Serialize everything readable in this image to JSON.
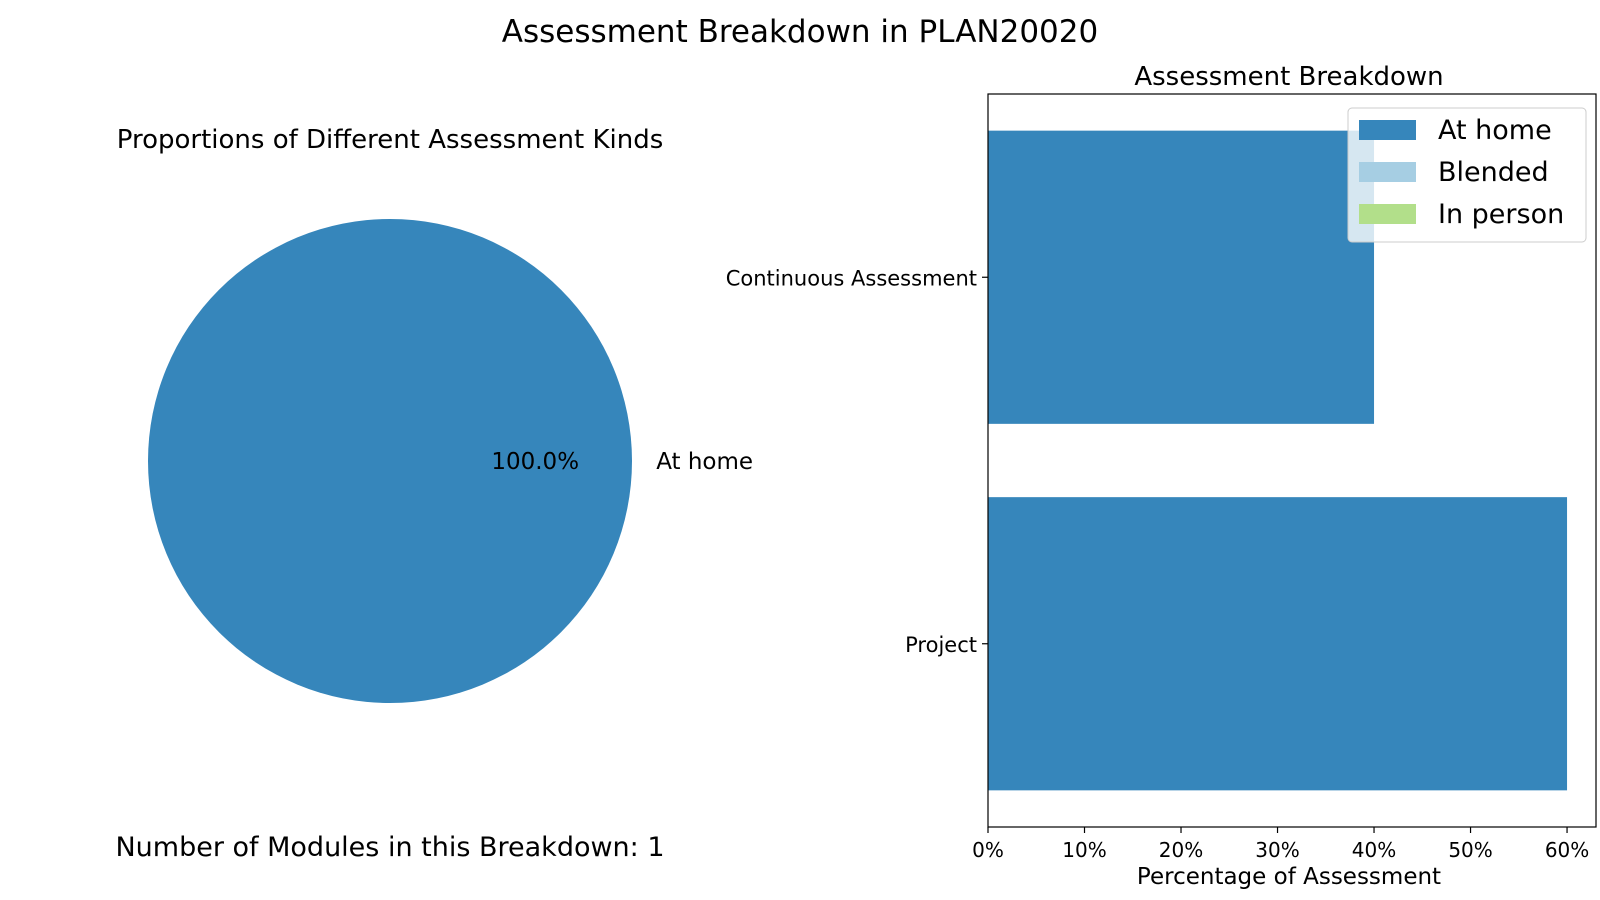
{
  "figure": {
    "suptitle": "Assessment Breakdown in PLAN20020"
  },
  "colors": {
    "at_home": "#3686bb",
    "blended": "#a6cee3",
    "in_person": "#b2df8a"
  },
  "chart_data": [
    {
      "type": "pie",
      "title": "Proportions of Different Assessment Kinds",
      "slices": [
        {
          "label": "At home",
          "value": 100.0,
          "pct_label": "100.0%",
          "color": "#3686bb"
        }
      ],
      "footer": "Number of Modules in this Breakdown: 1"
    },
    {
      "type": "bar",
      "orientation": "horizontal",
      "stacked": true,
      "title": "Assessment Breakdown",
      "xlabel": "Percentage of Assessment",
      "ylabel": "",
      "categories": [
        "Continuous Assessment",
        "Project"
      ],
      "series": [
        {
          "name": "At home",
          "color": "#3686bb",
          "values": [
            40,
            60
          ]
        },
        {
          "name": "Blended",
          "color": "#a6cee3",
          "values": [
            0,
            0
          ]
        },
        {
          "name": "In person",
          "color": "#b2df8a",
          "values": [
            0,
            0
          ]
        }
      ],
      "xlim": [
        0,
        63
      ],
      "xticks": [
        0,
        10,
        20,
        30,
        40,
        50,
        60
      ],
      "xtick_labels": [
        "0%",
        "10%",
        "20%",
        "30%",
        "40%",
        "50%",
        "60%"
      ],
      "legend_position": "top-right",
      "grid": false
    }
  ]
}
